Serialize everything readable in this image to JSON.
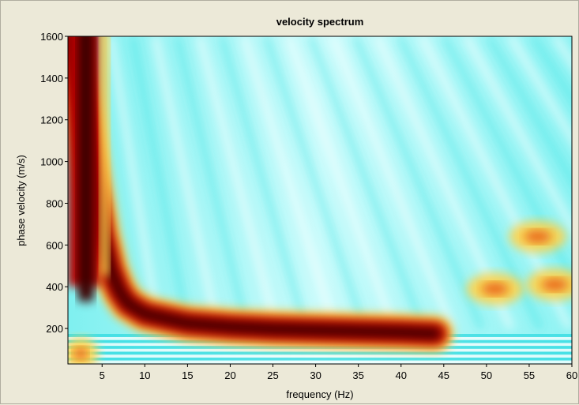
{
  "window": {
    "background": "#ece9d8"
  },
  "chart_data": {
    "type": "heatmap",
    "title": "velocity spectrum",
    "xlabel": "frequency (Hz)",
    "ylabel": "phase velocity (m/s)",
    "xlim": [
      1,
      60
    ],
    "ylim": [
      30,
      1600
    ],
    "x_ticks": [
      5,
      10,
      15,
      20,
      25,
      30,
      35,
      40,
      45,
      50,
      55,
      60
    ],
    "y_ticks": [
      200,
      400,
      600,
      800,
      1000,
      1200,
      1400,
      1600
    ],
    "grid": false,
    "legend": "none",
    "colormap": [
      "#ffffff",
      "#2ee6e6",
      "#ffd24a",
      "#e8560a",
      "#b00000",
      "#3a0000"
    ],
    "dominant_ridge": {
      "description_key": "fundamental-mode",
      "points": [
        [
          1.5,
          1600
        ],
        [
          3,
          1200
        ],
        [
          4,
          900
        ],
        [
          5,
          650
        ],
        [
          6,
          480
        ],
        [
          7,
          380
        ],
        [
          8,
          320
        ],
        [
          10,
          270
        ],
        [
          15,
          225
        ],
        [
          20,
          208
        ],
        [
          25,
          198
        ],
        [
          30,
          192
        ],
        [
          35,
          187
        ],
        [
          40,
          182
        ],
        [
          44,
          175
        ]
      ]
    },
    "secondary_highs": [
      {
        "x": 51,
        "y": 390
      },
      {
        "x": 58,
        "y": 410
      },
      {
        "x": 56,
        "y": 640
      },
      {
        "x": 2.5,
        "y": 80
      }
    ]
  }
}
